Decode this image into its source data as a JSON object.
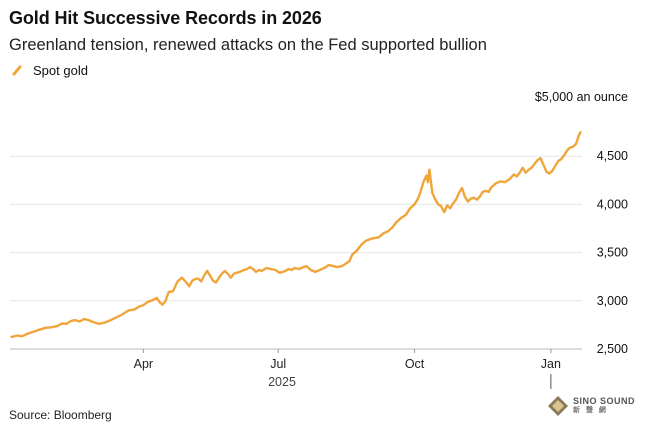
{
  "header": {
    "title": "Gold Hit Successive Records in 2026",
    "subtitle": "Greenland tension, renewed attacks on the Fed supported bullion"
  },
  "footer": {
    "source": "Source: Bloomberg"
  },
  "watermark": {
    "text": "SINO SOUND",
    "subtext": "新 聲 網"
  },
  "colors": {
    "line": "#f0a53a",
    "grid": "#e6e6e6",
    "axis": "#bbbbbb"
  },
  "chart_data": {
    "type": "line",
    "title": "Gold Hit Successive Records in 2026",
    "legend": [
      "Spot gold"
    ],
    "legend_position": "top-left",
    "ylabel_note": "$5,000 an ounce",
    "ylim": [
      2500,
      5000
    ],
    "yticks": [
      2500,
      3000,
      3500,
      4000,
      4500
    ],
    "ytick_labels": [
      "2,500",
      "3,000",
      "3,500",
      "4,000",
      "4,500"
    ],
    "xticks": [
      {
        "day": 90,
        "label": "Apr"
      },
      {
        "day": 181,
        "label": "Jul"
      },
      {
        "day": 273,
        "label": "Oct"
      },
      {
        "day": 365,
        "label": "Jan"
      }
    ],
    "year_label": "2025",
    "xlim": [
      0,
      386
    ],
    "grid": true,
    "series": [
      {
        "name": "Spot gold",
        "points": [
          [
            1,
            2625
          ],
          [
            5,
            2640
          ],
          [
            8,
            2632
          ],
          [
            12,
            2660
          ],
          [
            16,
            2680
          ],
          [
            20,
            2700
          ],
          [
            24,
            2720
          ],
          [
            28,
            2725
          ],
          [
            32,
            2740
          ],
          [
            35,
            2765
          ],
          [
            38,
            2760
          ],
          [
            41,
            2790
          ],
          [
            44,
            2800
          ],
          [
            47,
            2785
          ],
          [
            50,
            2810
          ],
          [
            53,
            2800
          ],
          [
            56,
            2780
          ],
          [
            60,
            2760
          ],
          [
            64,
            2775
          ],
          [
            68,
            2800
          ],
          [
            72,
            2830
          ],
          [
            76,
            2860
          ],
          [
            80,
            2900
          ],
          [
            84,
            2910
          ],
          [
            87,
            2940
          ],
          [
            90,
            2955
          ],
          [
            93,
            2990
          ],
          [
            96,
            3005
          ],
          [
            99,
            3030
          ],
          [
            101,
            2985
          ],
          [
            103,
            2960
          ],
          [
            105,
            3000
          ],
          [
            107,
            3090
          ],
          [
            110,
            3100
          ],
          [
            113,
            3200
          ],
          [
            116,
            3240
          ],
          [
            119,
            3190
          ],
          [
            121,
            3150
          ],
          [
            123,
            3210
          ],
          [
            125,
            3225
          ],
          [
            127,
            3230
          ],
          [
            129,
            3200
          ],
          [
            131,
            3260
          ],
          [
            133,
            3310
          ],
          [
            135,
            3260
          ],
          [
            137,
            3210
          ],
          [
            139,
            3190
          ],
          [
            141,
            3240
          ],
          [
            143,
            3280
          ],
          [
            145,
            3310
          ],
          [
            147,
            3280
          ],
          [
            149,
            3240
          ],
          [
            151,
            3280
          ],
          [
            153,
            3290
          ],
          [
            155,
            3300
          ],
          [
            158,
            3320
          ],
          [
            160,
            3330
          ],
          [
            162,
            3350
          ],
          [
            164,
            3330
          ],
          [
            166,
            3300
          ],
          [
            168,
            3320
          ],
          [
            170,
            3310
          ],
          [
            173,
            3340
          ],
          [
            176,
            3330
          ],
          [
            179,
            3320
          ],
          [
            182,
            3290
          ],
          [
            184,
            3300
          ],
          [
            186,
            3310
          ],
          [
            188,
            3330
          ],
          [
            190,
            3320
          ],
          [
            192,
            3340
          ],
          [
            195,
            3330
          ],
          [
            198,
            3350
          ],
          [
            200,
            3360
          ],
          [
            203,
            3320
          ],
          [
            206,
            3300
          ],
          [
            209,
            3320
          ],
          [
            212,
            3340
          ],
          [
            215,
            3370
          ],
          [
            218,
            3360
          ],
          [
            221,
            3350
          ],
          [
            224,
            3360
          ],
          [
            227,
            3390
          ],
          [
            229,
            3410
          ],
          [
            231,
            3480
          ],
          [
            234,
            3520
          ],
          [
            237,
            3580
          ],
          [
            240,
            3620
          ],
          [
            243,
            3640
          ],
          [
            246,
            3650
          ],
          [
            249,
            3660
          ],
          [
            252,
            3700
          ],
          [
            255,
            3720
          ],
          [
            258,
            3760
          ],
          [
            261,
            3820
          ],
          [
            264,
            3860
          ],
          [
            267,
            3890
          ],
          [
            270,
            3960
          ],
          [
            273,
            4000
          ],
          [
            275,
            4050
          ],
          [
            277,
            4130
          ],
          [
            279,
            4230
          ],
          [
            281,
            4300
          ],
          [
            282,
            4230
          ],
          [
            283,
            4360
          ],
          [
            285,
            4120
          ],
          [
            287,
            4050
          ],
          [
            289,
            4000
          ],
          [
            291,
            3980
          ],
          [
            293,
            3920
          ],
          [
            295,
            3990
          ],
          [
            297,
            3960
          ],
          [
            299,
            4010
          ],
          [
            301,
            4050
          ],
          [
            303,
            4120
          ],
          [
            305,
            4170
          ],
          [
            307,
            4080
          ],
          [
            309,
            4030
          ],
          [
            311,
            4060
          ],
          [
            313,
            4070
          ],
          [
            315,
            4050
          ],
          [
            317,
            4080
          ],
          [
            319,
            4130
          ],
          [
            321,
            4140
          ],
          [
            323,
            4130
          ],
          [
            325,
            4180
          ],
          [
            328,
            4220
          ],
          [
            331,
            4240
          ],
          [
            334,
            4230
          ],
          [
            337,
            4260
          ],
          [
            340,
            4310
          ],
          [
            342,
            4290
          ],
          [
            344,
            4330
          ],
          [
            346,
            4380
          ],
          [
            348,
            4330
          ],
          [
            350,
            4360
          ],
          [
            352,
            4380
          ],
          [
            354,
            4420
          ],
          [
            356,
            4460
          ],
          [
            358,
            4480
          ],
          [
            360,
            4410
          ],
          [
            362,
            4340
          ],
          [
            364,
            4320
          ],
          [
            366,
            4350
          ],
          [
            368,
            4400
          ],
          [
            370,
            4450
          ],
          [
            372,
            4470
          ],
          [
            374,
            4510
          ],
          [
            376,
            4560
          ],
          [
            378,
            4590
          ],
          [
            380,
            4600
          ],
          [
            382,
            4630
          ],
          [
            384,
            4720
          ],
          [
            385,
            4750
          ]
        ]
      }
    ]
  }
}
